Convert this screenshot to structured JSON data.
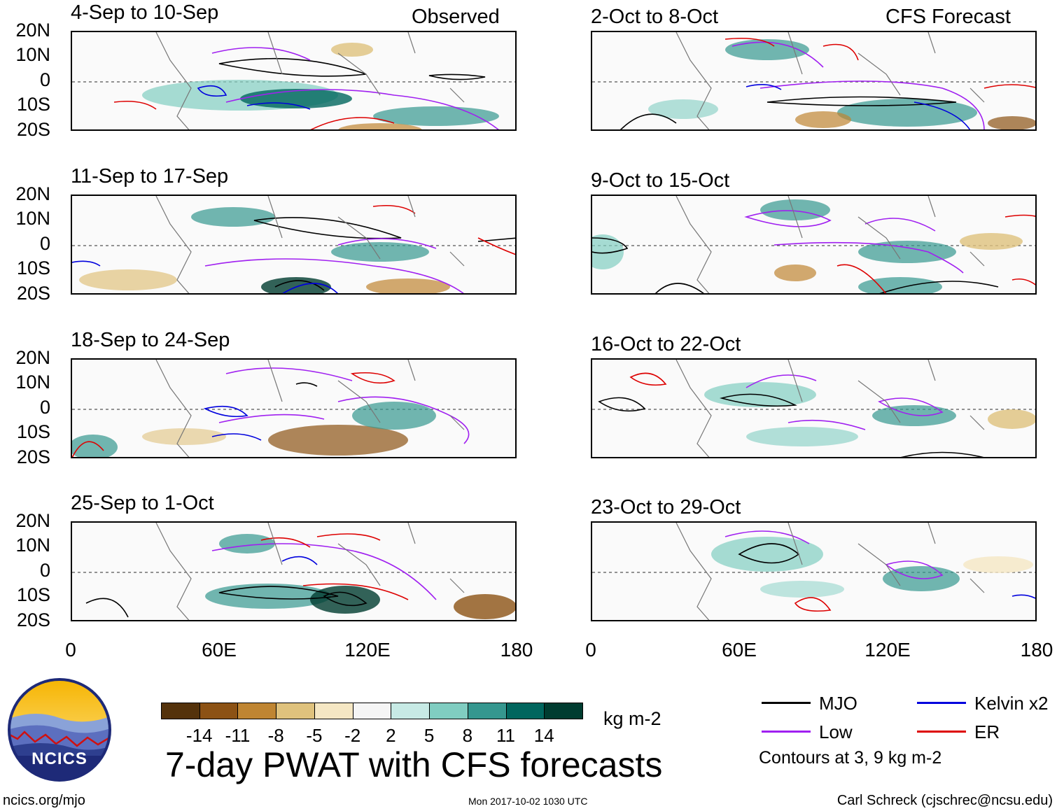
{
  "header": {
    "observed_label": "Observed",
    "forecast_label": "CFS Forecast"
  },
  "y_axis_labels": [
    "20N",
    "10N",
    "0",
    "10S",
    "20S"
  ],
  "x_axis_labels": [
    "0",
    "60E",
    "120E",
    "180"
  ],
  "panels": {
    "observed": [
      {
        "title": "4-Sep to 10-Sep"
      },
      {
        "title": "11-Sep to 17-Sep"
      },
      {
        "title": "18-Sep to 24-Sep"
      },
      {
        "title": "25-Sep to 1-Oct"
      }
    ],
    "forecast": [
      {
        "title": "2-Oct to 8-Oct"
      },
      {
        "title": "9-Oct to 15-Oct"
      },
      {
        "title": "16-Oct to 22-Oct"
      },
      {
        "title": "23-Oct to 29-Oct"
      }
    ]
  },
  "colorbar": {
    "unit": "kg m-2",
    "labels": [
      "-14",
      "-11",
      "-8",
      "-5",
      "-2",
      "2",
      "5",
      "8",
      "11",
      "14"
    ],
    "colors": [
      "#54320b",
      "#8c5214",
      "#bf8532",
      "#dfc27d",
      "#f5e7c4",
      "#f5f5f5",
      "#c7eae5",
      "#80cdc1",
      "#35978f",
      "#01665e",
      "#003c30"
    ]
  },
  "legend": {
    "items": [
      {
        "label": "MJO",
        "color": "#000000"
      },
      {
        "label": "Kelvin x2",
        "color": "#0000dd"
      },
      {
        "label": "Low",
        "color": "#a020f0"
      },
      {
        "label": "ER",
        "color": "#dd0000"
      }
    ],
    "note": "Contours at 3, 9 kg m-2"
  },
  "main_title": "7-day PWAT with CFS forecasts",
  "logo_text": "NCICS",
  "footer": {
    "site": "ncics.org/mjo",
    "timestamp": "Mon 2017-10-02 1030 UTC",
    "credit": "Carl Schreck (cjschrec@ncsu.edu)"
  }
}
